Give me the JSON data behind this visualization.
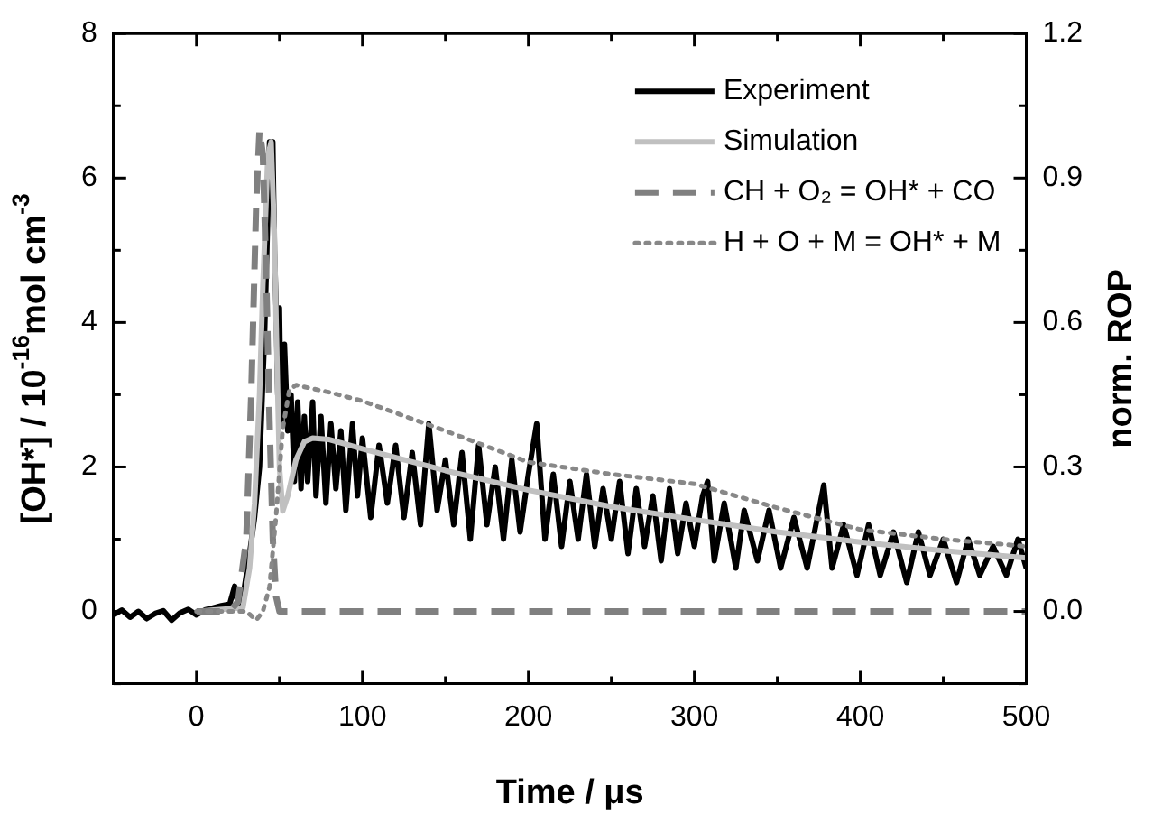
{
  "chart_data": {
    "type": "line",
    "xlabel": "Time / μs",
    "ylabel": "[OH*] / 10$^{-16}$mol cm$^{-3}$",
    "y2label": "norm. ROP",
    "xlim": [
      -50,
      500
    ],
    "xticks": [
      0,
      {
        "value": 50,
        "label": null
      },
      100,
      {
        "value": 150,
        "label": null
      },
      200,
      {
        "value": 250,
        "label": null
      },
      300,
      {
        "value": 350,
        "label": null
      },
      400,
      {
        "value": 450,
        "label": null
      },
      500,
      {
        "value": -50,
        "label": null
      }
    ],
    "ylim": [
      -1,
      8
    ],
    "yticks": [
      {
        "value": -1,
        "label": null
      },
      0,
      {
        "value": 1,
        "label": null
      },
      2,
      {
        "value": 3,
        "label": null
      },
      4,
      {
        "value": 5,
        "label": null
      },
      6,
      {
        "value": 7,
        "label": null
      },
      8
    ],
    "y2lim": [
      -0.15,
      1.2
    ],
    "y2ticks": [
      {
        "value": -0.15,
        "label": null
      },
      {
        "value": 0,
        "label": "0.0"
      },
      {
        "value": 0.15,
        "label": null
      },
      0.3,
      {
        "value": 0.45,
        "label": null
      },
      0.6,
      {
        "value": 0.75,
        "label": null
      },
      0.9,
      {
        "value": 1.05,
        "label": null
      },
      1.2
    ],
    "grid": false,
    "legend": "top right",
    "marker": "none",
    "series": [
      {
        "name": "Experiment",
        "color": "#000000",
        "line_style": "solid",
        "x": [
          -50,
          -45,
          -40,
          -35,
          -30,
          -25,
          -20,
          -15,
          -10,
          -5,
          0,
          5,
          10,
          15,
          20,
          23,
          25,
          28,
          32,
          35,
          38,
          41,
          43,
          44,
          46,
          47,
          48,
          49,
          50,
          51,
          53,
          55,
          57,
          59,
          61,
          63,
          65,
          67,
          70,
          72,
          75,
          78,
          81,
          84,
          87,
          90,
          94,
          97,
          100,
          105,
          110,
          115,
          120,
          125,
          130,
          135,
          140,
          145,
          150,
          155,
          160,
          165,
          170,
          175,
          180,
          185,
          190,
          195,
          200,
          205,
          210,
          215,
          220,
          225,
          230,
          235,
          240,
          245,
          250,
          255,
          260,
          265,
          270,
          275,
          280,
          285,
          290,
          295,
          300,
          305,
          308,
          312,
          318,
          325,
          330,
          338,
          345,
          352,
          360,
          368,
          375,
          378,
          383,
          390,
          398,
          405,
          412,
          420,
          428,
          435,
          442,
          450,
          458,
          465,
          472,
          480,
          488,
          495,
          500
        ],
        "values": [
          -0.05,
          0.02,
          -0.08,
          0.0,
          -0.1,
          -0.03,
          0.01,
          -0.12,
          -0.02,
          0.03,
          -0.05,
          0.02,
          0.05,
          0.08,
          0.1,
          0.35,
          0.1,
          0.2,
          0.8,
          1.3,
          2.0,
          3.8,
          5.5,
          6.5,
          6.5,
          5.0,
          4.2,
          3.0,
          4.2,
          2.6,
          3.7,
          2.5,
          3.0,
          1.8,
          2.9,
          1.7,
          2.7,
          1.8,
          2.9,
          1.6,
          2.7,
          1.5,
          2.6,
          1.7,
          2.5,
          1.4,
          2.6,
          1.6,
          2.4,
          1.3,
          2.3,
          1.5,
          2.3,
          1.3,
          2.2,
          1.2,
          2.6,
          1.4,
          2.1,
          1.2,
          2.2,
          1.0,
          2.3,
          1.2,
          2.0,
          1.0,
          2.1,
          1.1,
          1.9,
          2.6,
          1.0,
          1.9,
          0.9,
          1.8,
          1.0,
          1.9,
          0.9,
          1.7,
          1.0,
          1.8,
          0.8,
          1.7,
          0.9,
          1.6,
          0.7,
          1.7,
          0.8,
          1.5,
          0.9,
          1.6,
          1.8,
          0.7,
          1.5,
          0.6,
          1.4,
          0.7,
          1.4,
          0.6,
          1.3,
          0.6,
          1.4,
          1.75,
          0.6,
          1.2,
          0.5,
          1.2,
          0.5,
          1.1,
          0.4,
          1.1,
          0.5,
          1.0,
          0.4,
          1.0,
          0.5,
          0.9,
          0.5,
          1.0,
          0.6
        ]
      },
      {
        "name": "Simulation",
        "color": "#c0c0c0",
        "line_style": "solid",
        "x": [
          0,
          28,
          32,
          35,
          38,
          40,
          43,
          45,
          47,
          48,
          50,
          52,
          55,
          60,
          65,
          70,
          80,
          100,
          150,
          200,
          250,
          300,
          350,
          400,
          450,
          500
        ],
        "values": [
          0,
          0.05,
          0.6,
          1.5,
          3.0,
          4.5,
          6.3,
          6.5,
          5.2,
          4.0,
          2.0,
          1.39,
          1.6,
          2.1,
          2.35,
          2.4,
          2.38,
          2.25,
          1.95,
          1.68,
          1.45,
          1.27,
          1.1,
          0.96,
          0.84,
          0.74
        ]
      },
      {
        "name": "CH + O₂ = OH* + CO",
        "color": "#808080",
        "line_style": "dashed",
        "axis": "y2",
        "x": [
          0,
          20,
          25,
          30,
          33,
          36,
          38,
          40,
          42,
          44,
          46,
          48,
          50,
          500
        ],
        "values": [
          0,
          0,
          0.02,
          0.15,
          0.45,
          0.85,
          1.0,
          0.95,
          0.7,
          0.4,
          0.15,
          0.03,
          0,
          0
        ]
      },
      {
        "name": "H + O + M = OH* + M",
        "color": "#888888",
        "line_style": "dotted",
        "axis": "y2",
        "x": [
          0,
          30,
          36,
          40,
          44,
          48,
          52,
          56,
          60,
          80,
          100,
          150,
          200,
          250,
          300,
          350,
          400,
          450,
          500
        ],
        "values": [
          0,
          0,
          -0.018,
          0,
          0.05,
          0.2,
          0.38,
          0.46,
          0.47,
          0.455,
          0.437,
          0.375,
          0.31,
          0.285,
          0.265,
          0.215,
          0.17,
          0.15,
          0.135
        ]
      }
    ]
  }
}
